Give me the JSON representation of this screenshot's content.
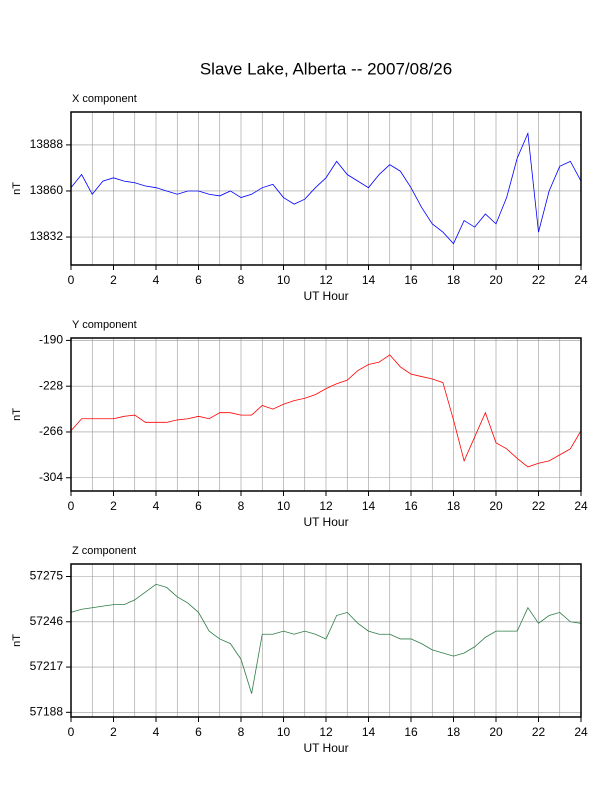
{
  "title": "Slave Lake, Alberta -- 2007/08/26",
  "chart_data": [
    {
      "type": "line",
      "title": "X component",
      "xlabel": "UT Hour",
      "ylabel": "nT",
      "x": [
        0,
        0.5,
        1,
        1.5,
        2,
        2.5,
        3,
        3.5,
        4,
        4.5,
        5,
        5.5,
        6,
        6.5,
        7,
        7.5,
        8,
        8.5,
        9,
        9.5,
        10,
        10.5,
        11,
        11.5,
        12,
        12.5,
        13,
        13.5,
        14,
        14.5,
        15,
        15.5,
        16,
        16.5,
        17,
        17.5,
        18,
        18.5,
        19,
        19.5,
        20,
        20.5,
        21,
        21.5,
        22,
        22.5,
        23,
        23.5,
        24
      ],
      "series": [
        {
          "color": "#0000ff",
          "values": [
            13862,
            13870,
            13858,
            13866,
            13868,
            13866,
            13865,
            13863,
            13862,
            13860,
            13858,
            13860,
            13860,
            13858,
            13857,
            13860,
            13856,
            13858,
            13862,
            13864,
            13856,
            13852,
            13855,
            13862,
            13868,
            13878,
            13870,
            13866,
            13862,
            13870,
            13876,
            13872,
            13862,
            13850,
            13840,
            13835,
            13828,
            13842,
            13838,
            13846,
            13840,
            13856,
            13880,
            13895,
            13835,
            13860,
            13875,
            13878,
            13866
          ]
        }
      ],
      "xlim": [
        0,
        24
      ],
      "xticks": [
        0,
        2,
        4,
        6,
        8,
        10,
        12,
        14,
        16,
        18,
        20,
        22,
        24
      ],
      "xgrid_step": 1,
      "ylim": [
        13815,
        13908
      ],
      "yticks": [
        13832,
        13860,
        13888
      ],
      "grid": true
    },
    {
      "type": "line",
      "title": "Y component",
      "xlabel": "UT Hour",
      "ylabel": "nT",
      "x": [
        0,
        0.5,
        1,
        1.5,
        2,
        2.5,
        3,
        3.5,
        4,
        4.5,
        5,
        5.5,
        6,
        6.5,
        7,
        7.5,
        8,
        8.5,
        9,
        9.5,
        10,
        10.5,
        11,
        11.5,
        12,
        12.5,
        13,
        13.5,
        14,
        14.5,
        15,
        15.5,
        16,
        16.5,
        17,
        17.5,
        18,
        18.5,
        19,
        19.5,
        20,
        20.5,
        21,
        21.5,
        22,
        22.5,
        23,
        23.5,
        24
      ],
      "series": [
        {
          "color": "#ff0000",
          "values": [
            -265,
            -255,
            -255,
            -255,
            -255,
            -253,
            -252,
            -258,
            -258,
            -258,
            -256,
            -255,
            -253,
            -255,
            -250,
            -250,
            -252,
            -252,
            -244,
            -247,
            -243,
            -240,
            -238,
            -235,
            -230,
            -226,
            -223,
            -215,
            -210,
            -208,
            -202,
            -212,
            -218,
            -220,
            -222,
            -225,
            -256,
            -290,
            -270,
            -250,
            -275,
            -280,
            -288,
            -295,
            -292,
            -290,
            -285,
            -280,
            -265
          ]
        }
      ],
      "xlim": [
        0,
        24
      ],
      "xticks": [
        0,
        2,
        4,
        6,
        8,
        10,
        12,
        14,
        16,
        18,
        20,
        22,
        24
      ],
      "xgrid_step": 1,
      "ylim": [
        -315,
        -188
      ],
      "yticks": [
        -304,
        -266,
        -228,
        -190
      ],
      "grid": true
    },
    {
      "type": "line",
      "title": "Z component",
      "xlabel": "UT Hour",
      "ylabel": "nT",
      "x": [
        0,
        0.5,
        1,
        1.5,
        2,
        2.5,
        3,
        3.5,
        4,
        4.5,
        5,
        5.5,
        6,
        6.5,
        7,
        7.5,
        8,
        8.5,
        9,
        9.5,
        10,
        10.5,
        11,
        11.5,
        12,
        12.5,
        13,
        13.5,
        14,
        14.5,
        15,
        15.5,
        16,
        16.5,
        17,
        17.5,
        18,
        18.5,
        19,
        19.5,
        20,
        20.5,
        21,
        21.5,
        22,
        22.5,
        23,
        23.5,
        24
      ],
      "series": [
        {
          "color": "#2e7d46",
          "values": [
            57252,
            57254,
            57255,
            57256,
            57257,
            57257,
            57260,
            57265,
            57270,
            57268,
            57262,
            57258,
            57252,
            57240,
            57235,
            57232,
            57222,
            57200,
            57238,
            57238,
            57240,
            57238,
            57240,
            57238,
            57235,
            57250,
            57252,
            57245,
            57240,
            57238,
            57238,
            57235,
            57235,
            57232,
            57228,
            57226,
            57224,
            57226,
            57230,
            57236,
            57240,
            57240,
            57240,
            57255,
            57245,
            57250,
            57252,
            57246,
            57245
          ]
        }
      ],
      "xlim": [
        0,
        24
      ],
      "xticks": [
        0,
        2,
        4,
        6,
        8,
        10,
        12,
        14,
        16,
        18,
        20,
        22,
        24
      ],
      "xgrid_step": 1,
      "ylim": [
        57185,
        57283
      ],
      "yticks": [
        57188,
        57217,
        57246,
        57275
      ],
      "grid": true
    }
  ]
}
